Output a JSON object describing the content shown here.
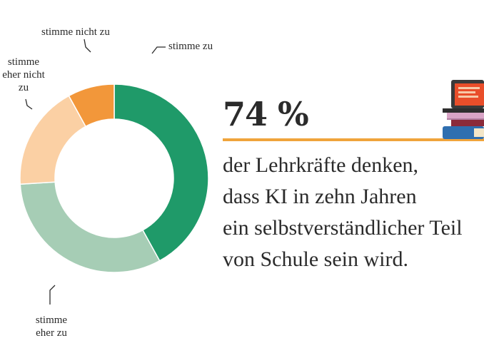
{
  "chart_data": {
    "type": "pie",
    "donut": true,
    "title": "",
    "series": [
      {
        "label": "stimme zu",
        "value": 42,
        "color": "#1f9a69"
      },
      {
        "label": "stimme eher zu",
        "value": 32,
        "color": "#a6cdb5"
      },
      {
        "label": "stimme eher nicht zu",
        "value": 18,
        "color": "#fbd0a4"
      },
      {
        "label": "stimme nicht zu",
        "value": 8,
        "color": "#f2973a"
      }
    ]
  },
  "labels": {
    "stimme_zu": "stimme zu",
    "stimme_eher_zu": "stimme\neher zu",
    "stimme_eher_nicht_zu": "stimme\neher nicht\nzu",
    "stimme_nicht_zu": "stimme nicht zu"
  },
  "headline": {
    "percent": "74 %",
    "statement": "der Lehrkräfte denken,\ndass KI in zehn Jahren\nein selbstverständlicher Teil\nvon Schule sein wird."
  },
  "colors": {
    "accent": "#f0a43c",
    "text": "#2b2b2b"
  },
  "icon": "books-laptop-icon"
}
